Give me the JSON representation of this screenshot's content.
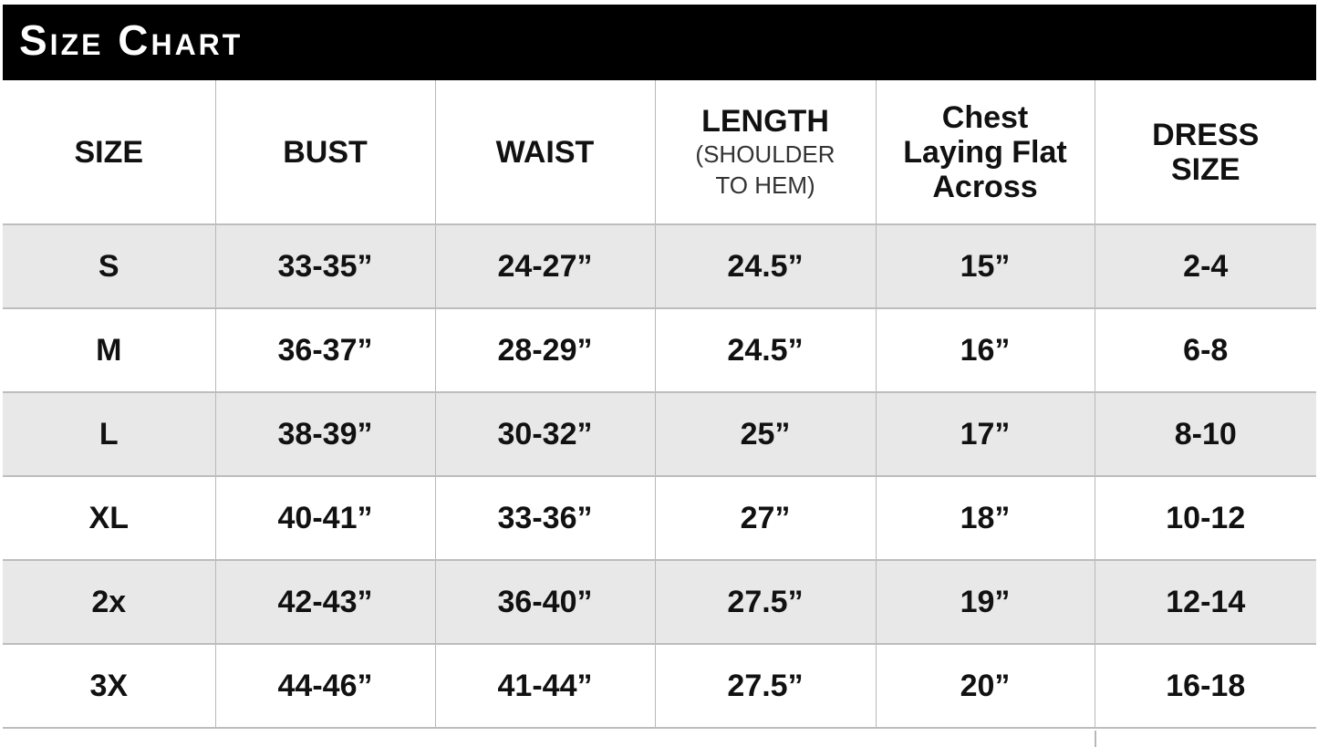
{
  "title": "Size Chart",
  "colors": {
    "title_bar": "#000000",
    "stripe": "#e8e8e8",
    "grid": "#b8b8b8"
  },
  "headers": [
    {
      "main": "SIZE",
      "sub": ""
    },
    {
      "main": "BUST",
      "sub": ""
    },
    {
      "main": "WAIST",
      "sub": ""
    },
    {
      "main": "LENGTH",
      "sub": "(SHOULDER TO HEM)"
    },
    {
      "main": "Chest Laying Flat Across",
      "sub": ""
    },
    {
      "main": "DRESS SIZE",
      "sub": ""
    }
  ],
  "rows": [
    [
      "S",
      "33-35”",
      "24-27”",
      "24.5”",
      "15”",
      "2-4"
    ],
    [
      "M",
      "36-37”",
      "28-29”",
      "24.5”",
      "16”",
      "6-8"
    ],
    [
      "L",
      "38-39”",
      "30-32”",
      "25”",
      "17”",
      "8-10"
    ],
    [
      "XL",
      "40-41”",
      "33-36”",
      "27”",
      "18”",
      "10-12"
    ],
    [
      "2x",
      "42-43”",
      "36-40”",
      "27.5”",
      "19”",
      "12-14"
    ],
    [
      "3X",
      "44-46”",
      "41-44”",
      "27.5”",
      "20”",
      "16-18"
    ]
  ]
}
